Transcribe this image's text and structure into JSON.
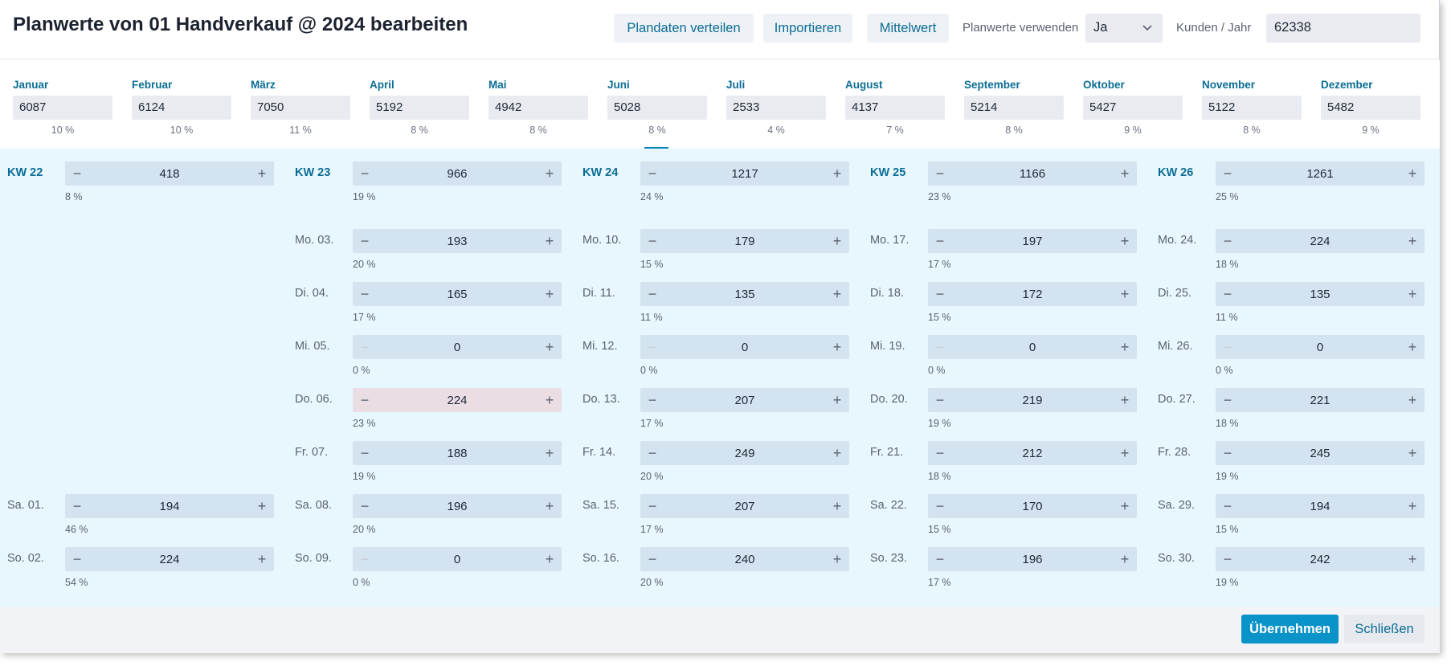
{
  "header": {
    "title": "Planwerte von 01 Handverkauf @ 2024 bearbeiten",
    "distribute_label": "Plandaten verteilen",
    "import_label": "Importieren",
    "average_label": "Mittelwert",
    "use_plan_label": "Planwerte verwenden",
    "use_plan_value": "Ja",
    "customers_label": "Kunden / Jahr",
    "customers_value": "62338"
  },
  "months": [
    {
      "label": "Januar",
      "value": "6087",
      "pct": "10 %"
    },
    {
      "label": "Februar",
      "value": "6124",
      "pct": "10 %"
    },
    {
      "label": "März",
      "value": "7050",
      "pct": "11 %"
    },
    {
      "label": "April",
      "value": "5192",
      "pct": "8 %"
    },
    {
      "label": "Mai",
      "value": "4942",
      "pct": "8 %"
    },
    {
      "label": "Juni",
      "value": "5028",
      "pct": "8 %"
    },
    {
      "label": "Juli",
      "value": "2533",
      "pct": "4 %"
    },
    {
      "label": "August",
      "value": "4137",
      "pct": "7 %"
    },
    {
      "label": "September",
      "value": "5214",
      "pct": "8 %"
    },
    {
      "label": "Oktober",
      "value": "5427",
      "pct": "9 %"
    },
    {
      "label": "November",
      "value": "5122",
      "pct": "8 %"
    },
    {
      "label": "Dezember",
      "value": "5482",
      "pct": "9 %"
    }
  ],
  "selected_month": "Juni",
  "weeks": [
    {
      "kw": "KW 22",
      "total": "418",
      "total_pct": "8 %",
      "days": [
        {
          "slot": 5,
          "label": "Sa. 01.",
          "value": "194",
          "pct": "46 %"
        },
        {
          "slot": 6,
          "label": "So. 02.",
          "value": "224",
          "pct": "54 %"
        }
      ]
    },
    {
      "kw": "KW 23",
      "total": "966",
      "total_pct": "19 %",
      "days": [
        {
          "slot": 0,
          "label": "Mo. 03.",
          "value": "193",
          "pct": "20 %"
        },
        {
          "slot": 1,
          "label": "Di. 04.",
          "value": "165",
          "pct": "17 %"
        },
        {
          "slot": 2,
          "label": "Mi. 05.",
          "value": "0",
          "pct": "0 %"
        },
        {
          "slot": 3,
          "label": "Do. 06.",
          "value": "224",
          "pct": "23 %",
          "alert": true
        },
        {
          "slot": 4,
          "label": "Fr. 07.",
          "value": "188",
          "pct": "19 %"
        },
        {
          "slot": 5,
          "label": "Sa. 08.",
          "value": "196",
          "pct": "20 %"
        },
        {
          "slot": 6,
          "label": "So. 09.",
          "value": "0",
          "pct": "0 %"
        }
      ]
    },
    {
      "kw": "KW 24",
      "total": "1217",
      "total_pct": "24 %",
      "days": [
        {
          "slot": 0,
          "label": "Mo. 10.",
          "value": "179",
          "pct": "15 %"
        },
        {
          "slot": 1,
          "label": "Di. 11.",
          "value": "135",
          "pct": "11 %"
        },
        {
          "slot": 2,
          "label": "Mi. 12.",
          "value": "0",
          "pct": "0 %"
        },
        {
          "slot": 3,
          "label": "Do. 13.",
          "value": "207",
          "pct": "17 %"
        },
        {
          "slot": 4,
          "label": "Fr. 14.",
          "value": "249",
          "pct": "20 %"
        },
        {
          "slot": 5,
          "label": "Sa. 15.",
          "value": "207",
          "pct": "17 %"
        },
        {
          "slot": 6,
          "label": "So. 16.",
          "value": "240",
          "pct": "20 %"
        }
      ]
    },
    {
      "kw": "KW 25",
      "total": "1166",
      "total_pct": "23 %",
      "days": [
        {
          "slot": 0,
          "label": "Mo. 17.",
          "value": "197",
          "pct": "17 %"
        },
        {
          "slot": 1,
          "label": "Di. 18.",
          "value": "172",
          "pct": "15 %"
        },
        {
          "slot": 2,
          "label": "Mi. 19.",
          "value": "0",
          "pct": "0 %"
        },
        {
          "slot": 3,
          "label": "Do. 20.",
          "value": "219",
          "pct": "19 %"
        },
        {
          "slot": 4,
          "label": "Fr. 21.",
          "value": "212",
          "pct": "18 %"
        },
        {
          "slot": 5,
          "label": "Sa. 22.",
          "value": "170",
          "pct": "15 %"
        },
        {
          "slot": 6,
          "label": "So. 23.",
          "value": "196",
          "pct": "17 %"
        }
      ]
    },
    {
      "kw": "KW 26",
      "total": "1261",
      "total_pct": "25 %",
      "days": [
        {
          "slot": 0,
          "label": "Mo. 24.",
          "value": "224",
          "pct": "18 %"
        },
        {
          "slot": 1,
          "label": "Di. 25.",
          "value": "135",
          "pct": "11 %"
        },
        {
          "slot": 2,
          "label": "Mi. 26.",
          "value": "0",
          "pct": "0 %"
        },
        {
          "slot": 3,
          "label": "Do. 27.",
          "value": "221",
          "pct": "18 %"
        },
        {
          "slot": 4,
          "label": "Fr. 28.",
          "value": "245",
          "pct": "19 %"
        },
        {
          "slot": 5,
          "label": "Sa. 29.",
          "value": "194",
          "pct": "15 %"
        },
        {
          "slot": 6,
          "label": "So. 30.",
          "value": "242",
          "pct": "19 %"
        }
      ]
    }
  ],
  "footer": {
    "apply_label": "Übernehmen",
    "close_label": "Schließen"
  },
  "icons": {
    "minus": "minus-icon",
    "plus": "plus-icon",
    "chevron": "chevron-down-icon"
  },
  "colors": {
    "accent": "#0b6d95",
    "primary_button": "#0a93c9",
    "grid_background": "#e8f7fd",
    "stepper": "#d3e3ef",
    "alert_stepper": "#eadde4"
  }
}
